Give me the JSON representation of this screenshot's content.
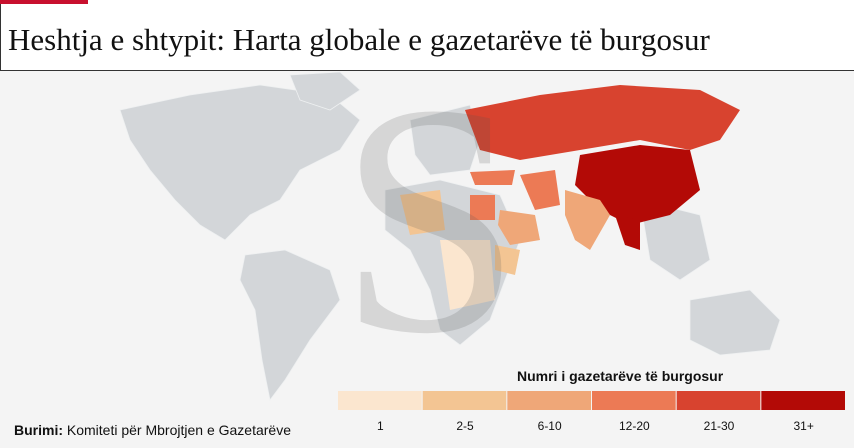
{
  "header": {
    "title": "Heshtja e shtypit: Harta globale e gazetarëve të burgosur"
  },
  "legend": {
    "title": "Numri i gazetarëve të burgosur",
    "items": [
      {
        "label": "1",
        "color": "#fbe6cf"
      },
      {
        "label": "2-5",
        "color": "#f3c593"
      },
      {
        "label": "6-10",
        "color": "#efa778"
      },
      {
        "label": "12-20",
        "color": "#ec7a55"
      },
      {
        "label": "21-30",
        "color": "#d8432f"
      },
      {
        "label": "31+",
        "color": "#b30a06"
      }
    ]
  },
  "source": {
    "label": "Burimi:",
    "text": "Komiteti për Mbrojtjen e Gazetarëve"
  }
}
